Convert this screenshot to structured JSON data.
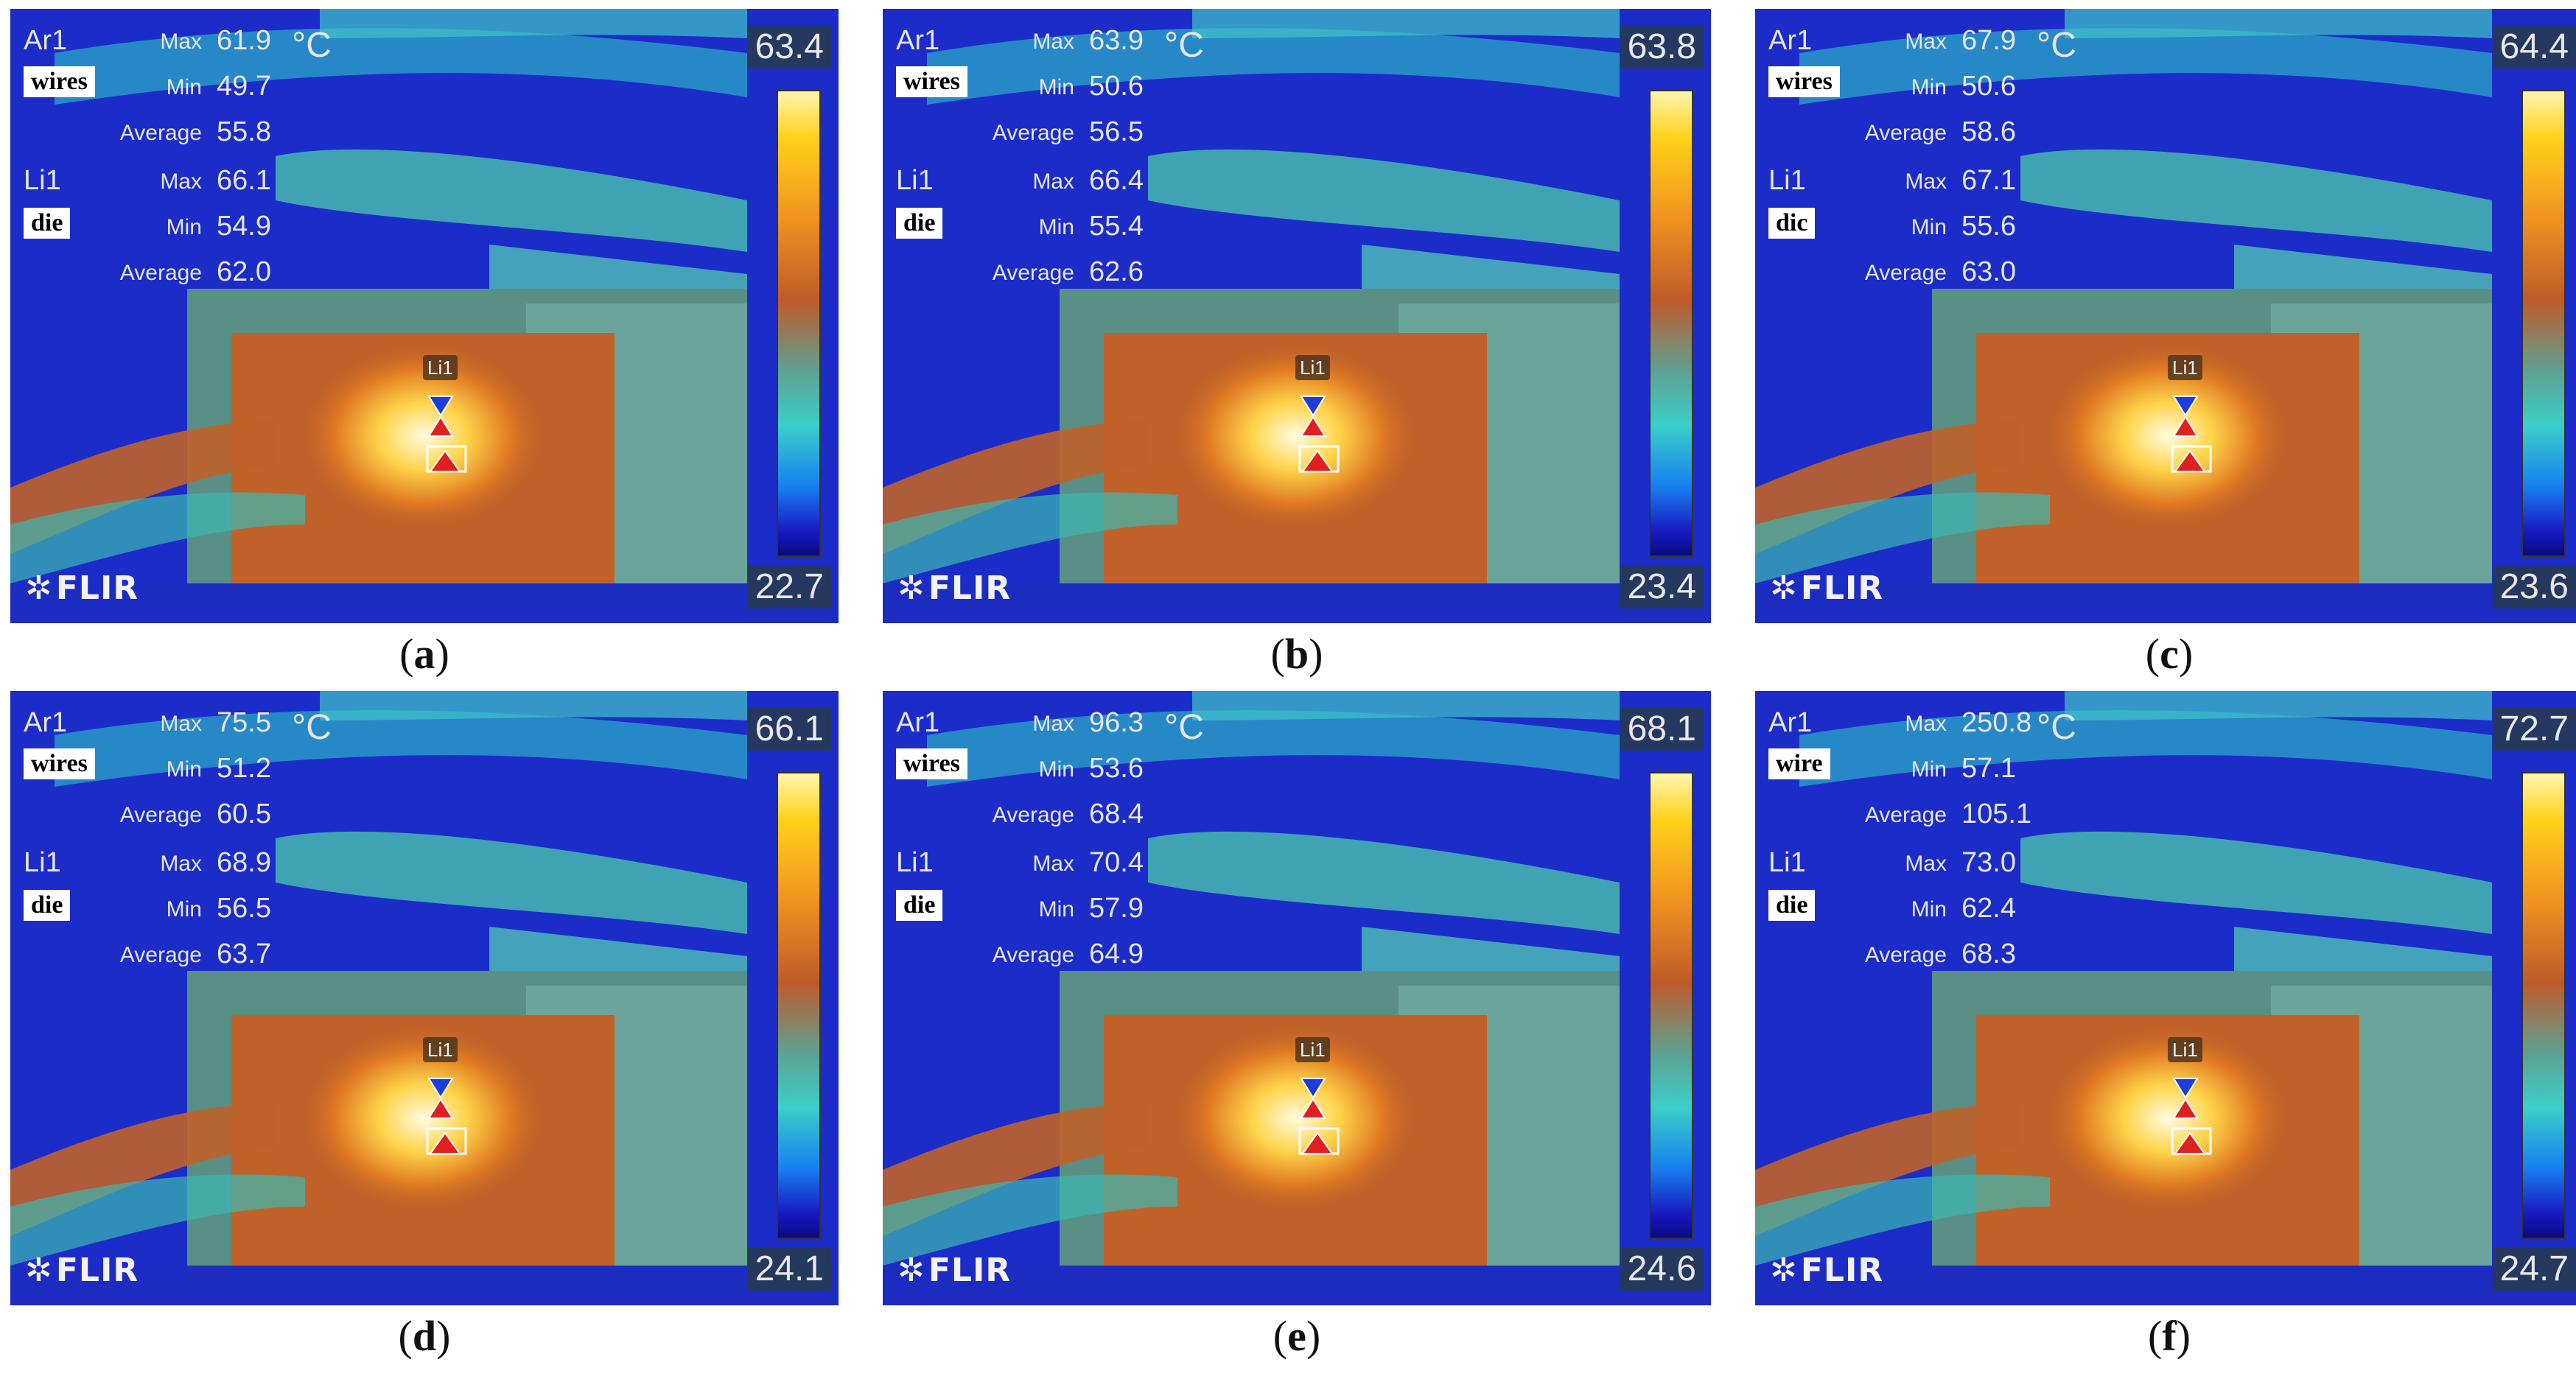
{
  "colorbar": [
    "#0a0a80",
    "#1818c0",
    "#1880f0",
    "#3ad0c8",
    "#5fa090",
    "#c05a2a",
    "#f09020",
    "#ffd21a",
    "#fff6b0"
  ],
  "brand": "FLIR",
  "unit": "°C",
  "labels": {
    "ar1": "Ar1",
    "li1": "Li1",
    "max": "Max",
    "min": "Min",
    "average": "Average",
    "spot": "Li1"
  },
  "panels": [
    {
      "caption": "a",
      "wires_tag": "wires",
      "die_tag": "die",
      "scale_max": "63.4",
      "scale_min": "22.7",
      "ar1": {
        "max": "61.9",
        "min": "49.7",
        "avg": "55.8"
      },
      "li1": {
        "max": "66.1",
        "min": "54.9",
        "avg": "62.0"
      }
    },
    {
      "caption": "b",
      "wires_tag": "wires",
      "die_tag": "die",
      "scale_max": "63.8",
      "scale_min": "23.4",
      "ar1": {
        "max": "63.9",
        "min": "50.6",
        "avg": "56.5"
      },
      "li1": {
        "max": "66.4",
        "min": "55.4",
        "avg": "62.6"
      }
    },
    {
      "caption": "c",
      "wires_tag": "wires",
      "die_tag": "dic",
      "scale_max": "64.4",
      "scale_min": "23.6",
      "ar1": {
        "max": "67.9",
        "min": "50.6",
        "avg": "58.6"
      },
      "li1": {
        "max": "67.1",
        "min": "55.6",
        "avg": "63.0"
      }
    },
    {
      "caption": "d",
      "wires_tag": "wires",
      "die_tag": "die",
      "scale_max": "66.1",
      "scale_min": "24.1",
      "ar1": {
        "max": "75.5",
        "min": "51.2",
        "avg": "60.5"
      },
      "li1": {
        "max": "68.9",
        "min": "56.5",
        "avg": "63.7"
      }
    },
    {
      "caption": "e",
      "wires_tag": "wires",
      "die_tag": "die",
      "scale_max": "68.1",
      "scale_min": "24.6",
      "ar1": {
        "max": "96.3",
        "min": "53.6",
        "avg": "68.4"
      },
      "li1": {
        "max": "70.4",
        "min": "57.9",
        "avg": "64.9"
      }
    },
    {
      "caption": "f",
      "wires_tag": "wire",
      "die_tag": "die",
      "scale_max": "72.7",
      "scale_min": "24.7",
      "ar1": {
        "max": "250.8",
        "min": "57.1",
        "avg": "105.1"
      },
      "li1": {
        "max": "73.0",
        "min": "62.4",
        "avg": "68.3"
      }
    }
  ]
}
